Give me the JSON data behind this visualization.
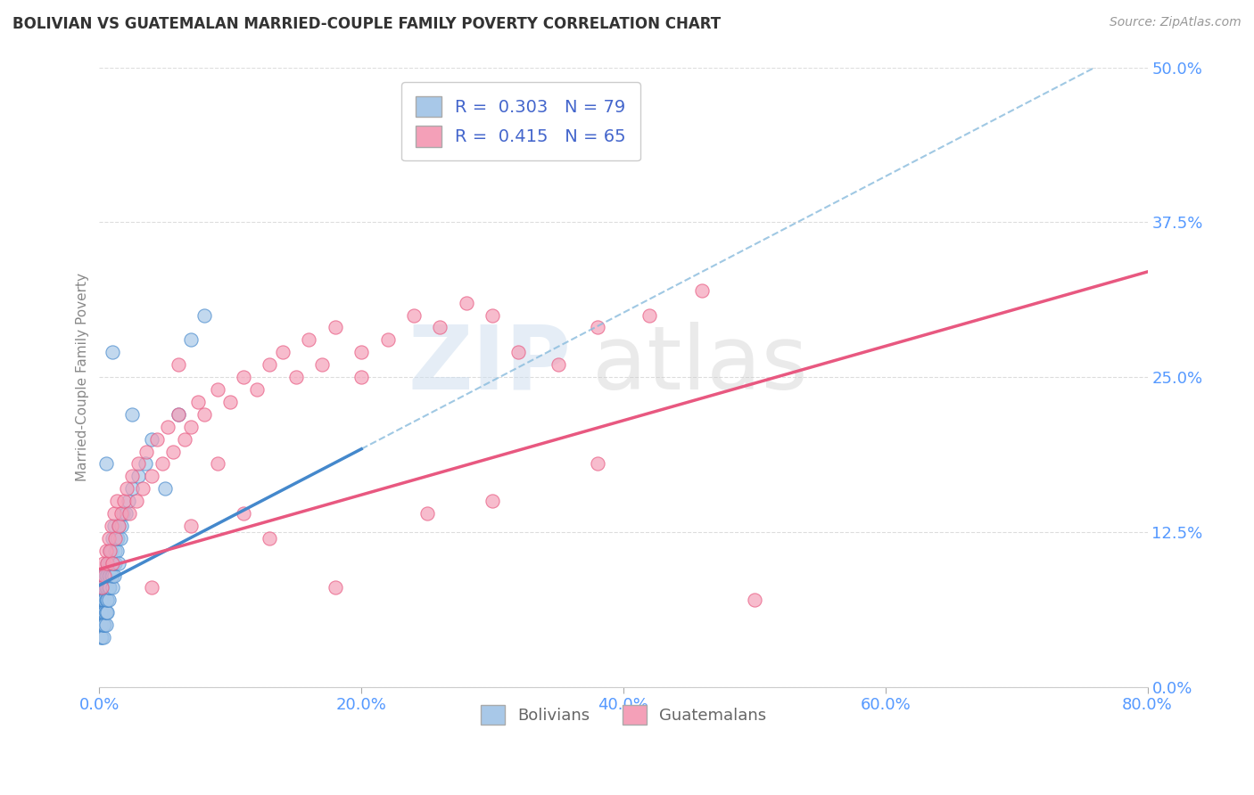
{
  "title": "BOLIVIAN VS GUATEMALAN MARRIED-COUPLE FAMILY POVERTY CORRELATION CHART",
  "source": "Source: ZipAtlas.com",
  "ylabel": "Married-Couple Family Poverty",
  "xlim": [
    0.0,
    0.8
  ],
  "ylim": [
    0.0,
    0.5
  ],
  "xticks": [
    0.0,
    0.2,
    0.4,
    0.6,
    0.8
  ],
  "xtick_labels": [
    "0.0%",
    "20.0%",
    "40.0%",
    "60.0%",
    "80.0%"
  ],
  "yticks": [
    0.0,
    0.125,
    0.25,
    0.375,
    0.5
  ],
  "ytick_labels": [
    "0.0%",
    "12.5%",
    "25.0%",
    "37.5%",
    "50.0%"
  ],
  "bolivian_color": "#a8c8e8",
  "guatemalan_color": "#f4a0b8",
  "bolivian_line_color": "#4488cc",
  "guatemalan_line_color": "#e85880",
  "bolivian_dashed_color": "#88bbdd",
  "bolivian_R": 0.303,
  "bolivian_N": 79,
  "guatemalan_R": 0.415,
  "guatemalan_N": 65,
  "background_color": "#ffffff",
  "grid_color": "#dddddd",
  "title_color": "#333333",
  "axis_tick_color": "#5599ff",
  "watermark_zip": "ZIP",
  "watermark_atlas": "atlas",
  "legend_label_bolivians": "Bolivians",
  "legend_label_guatemalans": "Guatemalans",
  "bolivian_line_intercept": 0.082,
  "bolivian_line_slope": 0.55,
  "guatemalan_line_intercept": 0.095,
  "guatemalan_line_slope": 0.3,
  "bolivian_x": [
    0.001,
    0.001,
    0.001,
    0.001,
    0.002,
    0.002,
    0.002,
    0.002,
    0.002,
    0.002,
    0.002,
    0.003,
    0.003,
    0.003,
    0.003,
    0.003,
    0.003,
    0.003,
    0.003,
    0.004,
    0.004,
    0.004,
    0.004,
    0.004,
    0.005,
    0.005,
    0.005,
    0.005,
    0.005,
    0.005,
    0.005,
    0.006,
    0.006,
    0.006,
    0.006,
    0.006,
    0.006,
    0.007,
    0.007,
    0.007,
    0.007,
    0.007,
    0.008,
    0.008,
    0.008,
    0.008,
    0.009,
    0.009,
    0.009,
    0.01,
    0.01,
    0.01,
    0.01,
    0.011,
    0.011,
    0.011,
    0.012,
    0.012,
    0.013,
    0.013,
    0.014,
    0.015,
    0.015,
    0.016,
    0.017,
    0.018,
    0.02,
    0.022,
    0.025,
    0.03,
    0.035,
    0.04,
    0.05,
    0.06,
    0.08,
    0.025,
    0.01,
    0.07,
    0.005
  ],
  "bolivian_y": [
    0.04,
    0.05,
    0.06,
    0.07,
    0.04,
    0.05,
    0.06,
    0.07,
    0.08,
    0.05,
    0.06,
    0.04,
    0.05,
    0.06,
    0.07,
    0.08,
    0.05,
    0.07,
    0.09,
    0.05,
    0.06,
    0.07,
    0.08,
    0.06,
    0.05,
    0.06,
    0.07,
    0.08,
    0.09,
    0.06,
    0.08,
    0.06,
    0.07,
    0.08,
    0.09,
    0.1,
    0.07,
    0.07,
    0.08,
    0.09,
    0.1,
    0.08,
    0.08,
    0.09,
    0.1,
    0.11,
    0.09,
    0.1,
    0.11,
    0.08,
    0.09,
    0.1,
    0.12,
    0.09,
    0.1,
    0.13,
    0.1,
    0.11,
    0.11,
    0.12,
    0.12,
    0.1,
    0.13,
    0.12,
    0.13,
    0.14,
    0.14,
    0.15,
    0.16,
    0.17,
    0.18,
    0.2,
    0.16,
    0.22,
    0.3,
    0.22,
    0.27,
    0.28,
    0.18
  ],
  "guatemalan_x": [
    0.002,
    0.003,
    0.004,
    0.005,
    0.006,
    0.007,
    0.008,
    0.009,
    0.01,
    0.011,
    0.012,
    0.013,
    0.015,
    0.017,
    0.019,
    0.021,
    0.023,
    0.025,
    0.028,
    0.03,
    0.033,
    0.036,
    0.04,
    0.044,
    0.048,
    0.052,
    0.056,
    0.06,
    0.065,
    0.07,
    0.075,
    0.08,
    0.09,
    0.1,
    0.11,
    0.12,
    0.13,
    0.14,
    0.15,
    0.16,
    0.17,
    0.18,
    0.2,
    0.22,
    0.24,
    0.26,
    0.28,
    0.3,
    0.32,
    0.35,
    0.38,
    0.42,
    0.46,
    0.5,
    0.3,
    0.25,
    0.18,
    0.13,
    0.07,
    0.04,
    0.06,
    0.09,
    0.38,
    0.2,
    0.11
  ],
  "guatemalan_y": [
    0.08,
    0.1,
    0.09,
    0.11,
    0.1,
    0.12,
    0.11,
    0.13,
    0.1,
    0.14,
    0.12,
    0.15,
    0.13,
    0.14,
    0.15,
    0.16,
    0.14,
    0.17,
    0.15,
    0.18,
    0.16,
    0.19,
    0.17,
    0.2,
    0.18,
    0.21,
    0.19,
    0.22,
    0.2,
    0.21,
    0.23,
    0.22,
    0.24,
    0.23,
    0.25,
    0.24,
    0.26,
    0.27,
    0.25,
    0.28,
    0.26,
    0.29,
    0.27,
    0.28,
    0.3,
    0.29,
    0.31,
    0.3,
    0.27,
    0.26,
    0.29,
    0.3,
    0.32,
    0.07,
    0.15,
    0.14,
    0.08,
    0.12,
    0.13,
    0.08,
    0.26,
    0.18,
    0.18,
    0.25,
    0.14
  ]
}
